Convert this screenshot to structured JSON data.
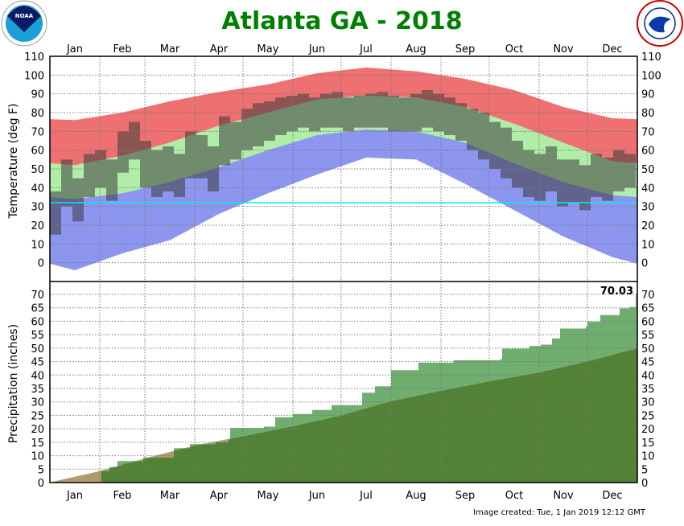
{
  "title": "Atlanta GA - 2018",
  "footer": "Image created: Tue, 1 Jan 2019 12:12 GMT",
  "logos": {
    "left": "NOAA",
    "right": "NATIONAL WEATHER SERVICE"
  },
  "colors": {
    "title": "#008000",
    "record_high_band": "#ee7070",
    "normal_band": "#b0eea8",
    "record_low_band": "#8c96ee",
    "observed_temp": "#3c3c3c",
    "freezing_line": "#00eeee",
    "precip_observed": "#6fae6f",
    "precip_normal": "#528235",
    "precip_deficit": "#b09a70"
  },
  "chart_data": [
    {
      "type": "bar",
      "ylabel": "Temperature (deg F)",
      "ylim": [
        -10,
        110
      ],
      "yticks": [
        0,
        10,
        20,
        30,
        40,
        50,
        60,
        70,
        80,
        90,
        100,
        110
      ],
      "months": [
        "Jan",
        "Feb",
        "Mar",
        "Apr",
        "May",
        "Jun",
        "Jul",
        "Aug",
        "Sep",
        "Oct",
        "Nov",
        "Dec"
      ],
      "grid": true,
      "freezing_line": 32,
      "monthly_normal_high": [
        52,
        57,
        64,
        73,
        80,
        87,
        89,
        88,
        83,
        74,
        64,
        54
      ],
      "monthly_normal_low": [
        34,
        37,
        43,
        51,
        60,
        68,
        71,
        70,
        64,
        53,
        43,
        36
      ],
      "monthly_record_high": [
        76,
        80,
        86,
        91,
        95,
        101,
        104,
        102,
        98,
        92,
        83,
        77
      ],
      "monthly_record_low": [
        -4,
        5,
        12,
        26,
        37,
        47,
        56,
        55,
        42,
        28,
        14,
        3
      ],
      "weekly_observed_high": [
        38,
        55,
        45,
        58,
        60,
        55,
        70,
        75,
        65,
        60,
        62,
        58,
        70,
        68,
        62,
        78,
        75,
        82,
        85,
        86,
        88,
        89,
        90,
        88,
        90,
        91,
        88,
        89,
        90,
        91,
        89,
        88,
        90,
        92,
        90,
        88,
        85,
        82,
        80,
        75,
        72,
        65,
        60,
        58,
        62,
        55,
        55,
        52,
        58,
        56,
        60,
        58
      ],
      "weekly_observed_low": [
        15,
        30,
        22,
        35,
        40,
        33,
        48,
        55,
        40,
        35,
        38,
        35,
        45,
        45,
        38,
        52,
        55,
        60,
        62,
        65,
        68,
        70,
        72,
        70,
        72,
        72,
        70,
        72,
        72,
        72,
        70,
        70,
        70,
        72,
        70,
        68,
        65,
        60,
        55,
        50,
        45,
        40,
        35,
        33,
        38,
        30,
        32,
        28,
        35,
        33,
        38,
        40
      ]
    },
    {
      "type": "area",
      "ylabel": "Precipitation (inches)",
      "ylim": [
        0,
        70
      ],
      "yticks": [
        0,
        5,
        10,
        15,
        20,
        25,
        30,
        35,
        40,
        45,
        50,
        55,
        60,
        65,
        70
      ],
      "grid": true,
      "annual_total_label": "70.03",
      "observed_cumulative": {
        "day": [
          0,
          32,
          37,
          42,
          58,
          77,
          87,
          103,
          111,
          112,
          133,
          140,
          151,
          163,
          175,
          193,
          194,
          202,
          211,
          212,
          229,
          251,
          280,
          281,
          298,
          305,
          312,
          317,
          333,
          334,
          342,
          354,
          360,
          363,
          364
        ],
        "inches": [
          0,
          4.3,
          5.8,
          8,
          9.3,
          12.8,
          14.3,
          15,
          16,
          20.3,
          20.8,
          24.3,
          25.5,
          27,
          28.8,
          28.8,
          33.4,
          35.8,
          35.8,
          41.8,
          44.6,
          45.5,
          46,
          49.8,
          50.8,
          51.3,
          53.6,
          57.3,
          58,
          59.8,
          62.3,
          64.8,
          65.3,
          65.3,
          70.03
        ]
      },
      "normal_cumulative_month_end": [
        4.2,
        8.9,
        13.7,
        17.2,
        20.9,
        24.9,
        30.2,
        34.1,
        37.6,
        40.9,
        45.0,
        49.9
      ]
    }
  ]
}
